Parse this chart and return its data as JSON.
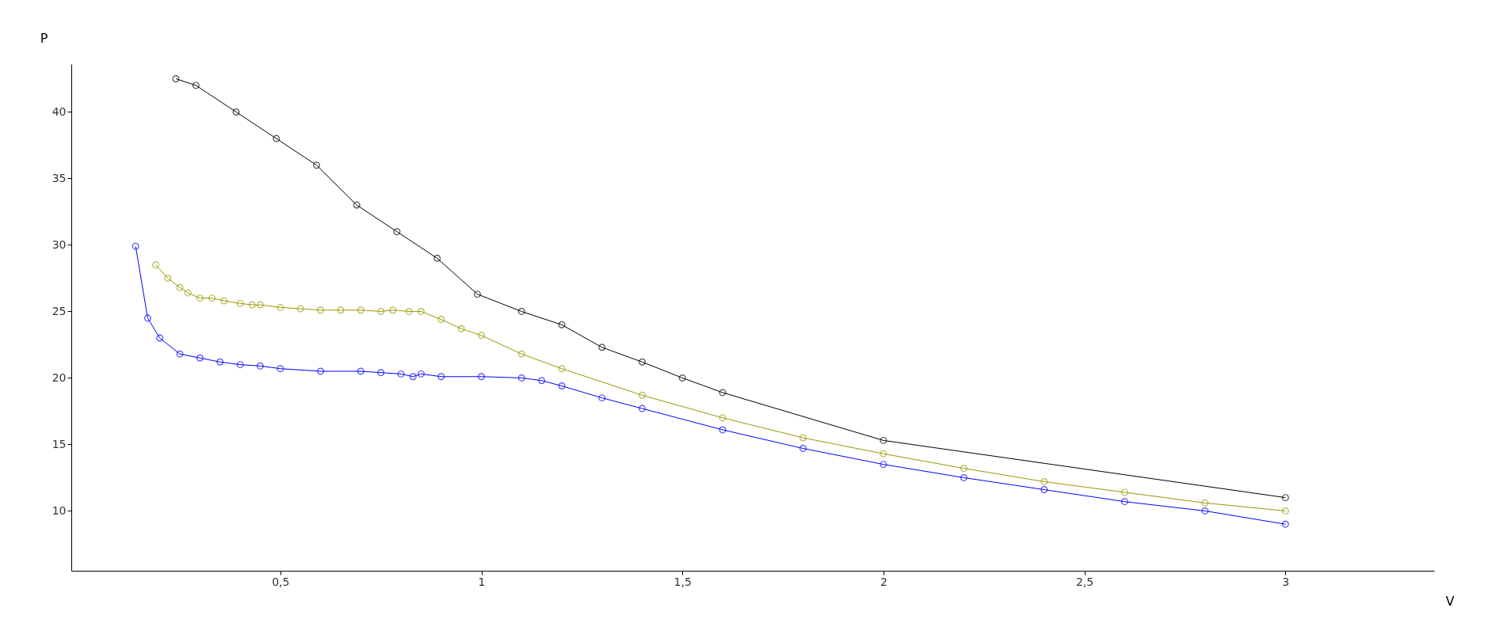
{
  "chart_data": {
    "type": "line",
    "xlabel": "V",
    "ylabel": "P",
    "xlim": [
      -0.02,
      3.37
    ],
    "ylim": [
      5.5,
      43.6
    ],
    "xticks": [
      {
        "value": 0.5,
        "label": "0,5"
      },
      1,
      {
        "value": 1.5,
        "label": "1,5"
      },
      2,
      {
        "value": 2.5,
        "label": "2,5"
      },
      3
    ],
    "yticks": [
      10,
      15,
      20,
      25,
      30,
      35,
      40
    ],
    "grid": false,
    "legend": false,
    "marker": "circle",
    "line_style": "solid",
    "series": [
      {
        "color": "#000000",
        "x": [
          0.24,
          0.29,
          0.39,
          0.49,
          0.59,
          0.69,
          0.79,
          0.89,
          0.99,
          1.1,
          1.2,
          1.3,
          1.4,
          1.5,
          1.6,
          2.0,
          3.0
        ],
        "values": [
          42.5,
          42,
          40,
          38,
          36,
          33,
          31,
          29,
          26.3,
          25,
          24,
          22.3,
          21.2,
          20,
          18.9,
          15.3,
          11
        ]
      },
      {
        "color": "#999900",
        "x": [
          0.19,
          0.22,
          0.25,
          0.27,
          0.3,
          0.33,
          0.36,
          0.4,
          0.43,
          0.45,
          0.5,
          0.55,
          0.6,
          0.65,
          0.7,
          0.75,
          0.78,
          0.82,
          0.85,
          0.9,
          0.95,
          1.0,
          1.1,
          1.2,
          1.4,
          1.6,
          1.8,
          2.0,
          2.2,
          2.4,
          2.6,
          2.8,
          3.0
        ],
        "values": [
          28.5,
          27.5,
          26.8,
          26.4,
          26,
          26,
          25.8,
          25.6,
          25.5,
          25.5,
          25.3,
          25.2,
          25.1,
          25.1,
          25.1,
          25.0,
          25.1,
          25,
          25,
          24.4,
          23.7,
          23.2,
          21.8,
          20.7,
          18.7,
          17.0,
          15.5,
          14.3,
          13.2,
          12.2,
          11.4,
          10.6,
          10
        ]
      },
      {
        "color": "#0000ff",
        "x": [
          0.14,
          0.17,
          0.2,
          0.25,
          0.3,
          0.35,
          0.4,
          0.45,
          0.5,
          0.6,
          0.7,
          0.75,
          0.8,
          0.83,
          0.85,
          0.9,
          1.0,
          1.1,
          1.15,
          1.2,
          1.3,
          1.4,
          1.6,
          1.8,
          2.0,
          2.2,
          2.4,
          2.6,
          2.8,
          3.0
        ],
        "values": [
          29.9,
          24.5,
          23,
          21.8,
          21.5,
          21.2,
          21.0,
          20.9,
          20.7,
          20.5,
          20.5,
          20.4,
          20.3,
          20.1,
          20.3,
          20.1,
          20.1,
          20.0,
          19.8,
          19.4,
          18.5,
          17.7,
          16.1,
          14.7,
          13.5,
          12.5,
          11.6,
          10.7,
          10.0,
          9.0
        ]
      }
    ]
  }
}
